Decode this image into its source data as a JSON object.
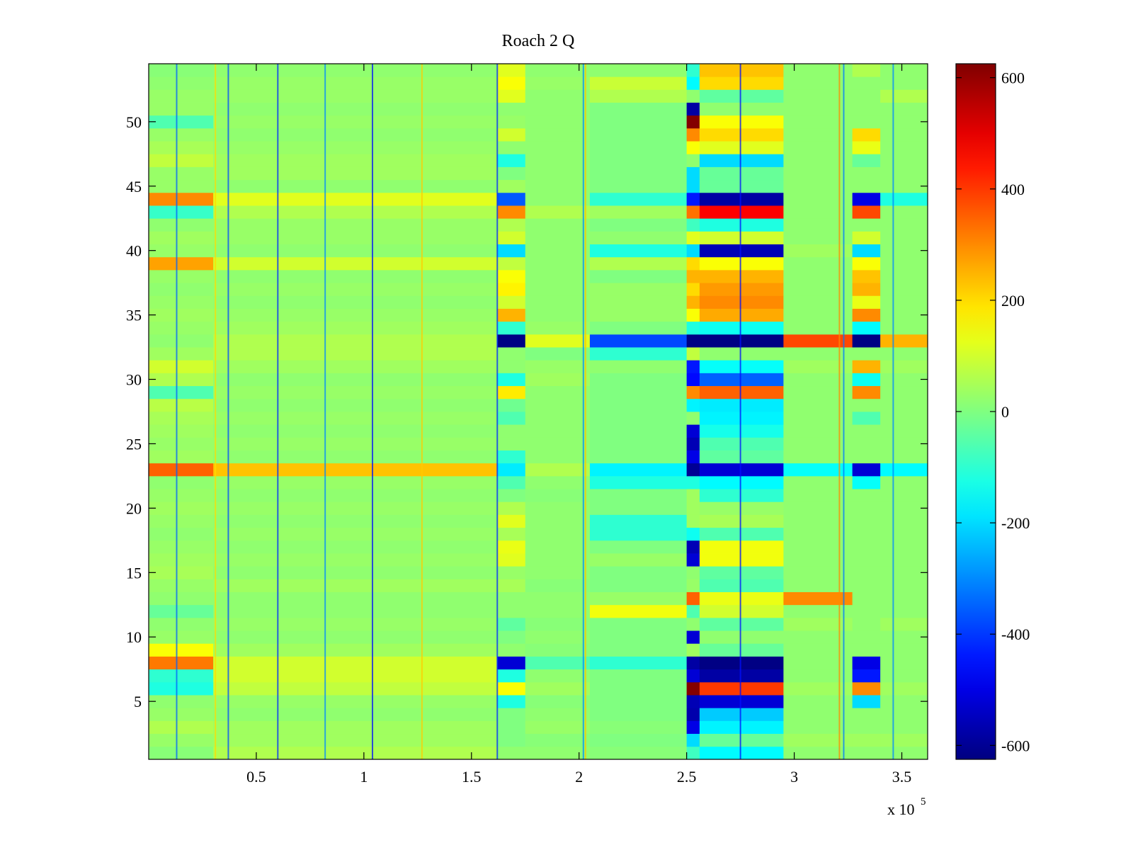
{
  "chart_data": {
    "type": "heatmap",
    "title": "Roach 2 Q",
    "xlabel": "",
    "ylabel": "",
    "x_exponent_label": "x 10",
    "x_exponent_power": "5",
    "xlim": [
      0,
      3.62
    ],
    "ylim": [
      0.5,
      54.5
    ],
    "x_ticks": [
      {
        "value": 0.5,
        "label": "0.5"
      },
      {
        "value": 1,
        "label": "1"
      },
      {
        "value": 1.5,
        "label": "1.5"
      },
      {
        "value": 2,
        "label": "2"
      },
      {
        "value": 2.5,
        "label": "2.5"
      },
      {
        "value": 3,
        "label": "3"
      },
      {
        "value": 3.5,
        "label": "3.5"
      }
    ],
    "y_ticks": [
      {
        "value": 5,
        "label": "5"
      },
      {
        "value": 10,
        "label": "10"
      },
      {
        "value": 15,
        "label": "15"
      },
      {
        "value": 20,
        "label": "20"
      },
      {
        "value": 25,
        "label": "25"
      },
      {
        "value": 30,
        "label": "30"
      },
      {
        "value": 35,
        "label": "35"
      },
      {
        "value": 40,
        "label": "40"
      },
      {
        "value": 45,
        "label": "45"
      },
      {
        "value": 50,
        "label": "50"
      }
    ],
    "colorbar": {
      "colormap": "jet",
      "range": [
        -625,
        625
      ],
      "ticks": [
        {
          "value": 600,
          "label": "600"
        },
        {
          "value": 400,
          "label": "400"
        },
        {
          "value": 200,
          "label": "200"
        },
        {
          "value": 0,
          "label": "0"
        },
        {
          "value": -200,
          "label": "-200"
        },
        {
          "value": -400,
          "label": "-400"
        },
        {
          "value": -600,
          "label": "-600"
        }
      ]
    },
    "rows": 54,
    "segments_x": [
      0,
      0.3,
      1.62,
      1.75,
      2.05,
      2.5,
      2.56,
      2.95,
      3.27,
      3.4,
      3.62
    ],
    "row_values": [
      [
        10,
        60,
        20,
        20,
        10,
        -80,
        -160,
        20,
        20,
        20
      ],
      [
        30,
        40,
        0,
        10,
        0,
        -200,
        -30,
        40,
        40,
        40
      ],
      [
        60,
        40,
        0,
        30,
        10,
        -500,
        -170,
        20,
        20,
        20
      ],
      [
        30,
        20,
        0,
        20,
        0,
        -570,
        -220,
        20,
        20,
        20
      ],
      [
        20,
        30,
        -120,
        10,
        0,
        -560,
        -520,
        20,
        -200,
        20
      ],
      [
        -120,
        80,
        150,
        40,
        0,
        620,
        400,
        40,
        300,
        40
      ],
      [
        -100,
        100,
        -120,
        20,
        0,
        -520,
        -580,
        20,
        -440,
        20
      ],
      [
        320,
        100,
        -520,
        -60,
        -100,
        -580,
        -620,
        20,
        -500,
        20
      ],
      [
        150,
        40,
        20,
        10,
        0,
        40,
        -30,
        20,
        20,
        20
      ],
      [
        30,
        20,
        0,
        20,
        0,
        -520,
        20,
        20,
        20,
        20
      ],
      [
        20,
        30,
        -40,
        10,
        0,
        20,
        -40,
        40,
        20,
        40
      ],
      [
        -30,
        20,
        20,
        20,
        140,
        -60,
        100,
        20,
        20,
        20
      ],
      [
        20,
        20,
        20,
        20,
        30,
        350,
        130,
        300,
        20,
        20
      ],
      [
        30,
        40,
        50,
        10,
        0,
        30,
        -60,
        20,
        20,
        20
      ],
      [
        50,
        20,
        30,
        20,
        0,
        20,
        -40,
        20,
        20,
        20
      ],
      [
        40,
        30,
        120,
        20,
        30,
        -520,
        140,
        20,
        20,
        20
      ],
      [
        30,
        20,
        130,
        20,
        0,
        -560,
        140,
        20,
        20,
        20
      ],
      [
        20,
        30,
        50,
        20,
        -100,
        -140,
        -60,
        20,
        20,
        20
      ],
      [
        30,
        20,
        120,
        20,
        -100,
        40,
        50,
        20,
        20,
        20
      ],
      [
        40,
        30,
        60,
        20,
        0,
        40,
        30,
        20,
        20,
        20
      ],
      [
        30,
        20,
        0,
        10,
        0,
        40,
        -100,
        20,
        20,
        20
      ],
      [
        20,
        30,
        -60,
        20,
        -120,
        -120,
        -160,
        20,
        -150,
        20
      ],
      [
        350,
        230,
        -180,
        60,
        -170,
        -600,
        -520,
        -150,
        -520,
        -160
      ],
      [
        40,
        20,
        -100,
        20,
        0,
        -500,
        -40,
        20,
        20,
        20
      ],
      [
        30,
        30,
        20,
        20,
        0,
        -560,
        -60,
        20,
        20,
        20
      ],
      [
        40,
        20,
        20,
        20,
        0,
        -520,
        -130,
        20,
        20,
        20
      ],
      [
        50,
        30,
        -60,
        20,
        0,
        20,
        -170,
        20,
        -60,
        20
      ],
      [
        70,
        20,
        -20,
        20,
        0,
        -170,
        -180,
        20,
        20,
        20
      ],
      [
        -60,
        30,
        180,
        20,
        0,
        300,
        350,
        20,
        300,
        20
      ],
      [
        60,
        20,
        -120,
        40,
        0,
        -460,
        -350,
        20,
        -140,
        20
      ],
      [
        100,
        40,
        20,
        30,
        20,
        -440,
        -150,
        40,
        250,
        40
      ],
      [
        40,
        60,
        20,
        0,
        -100,
        80,
        20,
        20,
        20,
        20
      ],
      [
        20,
        60,
        -620,
        120,
        -380,
        -620,
        -620,
        380,
        -620,
        250
      ],
      [
        30,
        40,
        -100,
        30,
        0,
        -120,
        -140,
        20,
        -160,
        20
      ],
      [
        40,
        30,
        250,
        20,
        30,
        150,
        260,
        20,
        300,
        20
      ],
      [
        30,
        20,
        100,
        20,
        30,
        250,
        300,
        20,
        130,
        20
      ],
      [
        20,
        30,
        170,
        20,
        30,
        200,
        280,
        20,
        250,
        20
      ],
      [
        30,
        20,
        150,
        20,
        0,
        250,
        250,
        20,
        230,
        20
      ],
      [
        270,
        100,
        80,
        20,
        60,
        200,
        150,
        20,
        150,
        20
      ],
      [
        30,
        20,
        -200,
        20,
        -120,
        -200,
        -560,
        40,
        -200,
        20
      ],
      [
        40,
        30,
        100,
        20,
        20,
        120,
        100,
        20,
        100,
        20
      ],
      [
        20,
        30,
        60,
        20,
        0,
        -80,
        -120,
        20,
        20,
        20
      ],
      [
        -90,
        60,
        300,
        60,
        40,
        330,
        470,
        20,
        380,
        20
      ],
      [
        300,
        120,
        -360,
        20,
        -100,
        -440,
        -580,
        20,
        -500,
        -120
      ],
      [
        30,
        20,
        40,
        20,
        0,
        -200,
        -30,
        20,
        20,
        20
      ],
      [
        30,
        40,
        0,
        20,
        0,
        -200,
        -30,
        20,
        20,
        20
      ],
      [
        80,
        40,
        -120,
        20,
        0,
        20,
        -200,
        20,
        -30,
        20
      ],
      [
        50,
        30,
        20,
        20,
        0,
        150,
        120,
        20,
        130,
        20
      ],
      [
        30,
        20,
        100,
        20,
        0,
        300,
        200,
        20,
        200,
        20
      ],
      [
        -60,
        30,
        30,
        20,
        0,
        620,
        150,
        20,
        20,
        20
      ],
      [
        30,
        20,
        20,
        20,
        0,
        -580,
        20,
        20,
        20,
        20
      ],
      [
        30,
        30,
        120,
        20,
        60,
        20,
        -40,
        20,
        20,
        60
      ],
      [
        20,
        30,
        150,
        30,
        90,
        -160,
        200,
        20,
        20,
        20
      ],
      [
        10,
        20,
        120,
        20,
        20,
        -100,
        230,
        20,
        60,
        20
      ]
    ],
    "vertical_streaks": [
      {
        "x": 0.13,
        "value": -350
      },
      {
        "x": 0.31,
        "value": 200
      },
      {
        "x": 0.37,
        "value": -380
      },
      {
        "x": 0.6,
        "value": -420
      },
      {
        "x": 0.82,
        "value": -300
      },
      {
        "x": 1.04,
        "value": -450
      },
      {
        "x": 1.27,
        "value": 220
      },
      {
        "x": 1.62,
        "value": -420
      },
      {
        "x": 2.02,
        "value": -300
      },
      {
        "x": 2.03,
        "value": 230
      },
      {
        "x": 2.75,
        "value": -450
      },
      {
        "x": 3.21,
        "value": 300
      },
      {
        "x": 3.23,
        "value": -320
      },
      {
        "x": 3.46,
        "value": -300
      }
    ]
  }
}
